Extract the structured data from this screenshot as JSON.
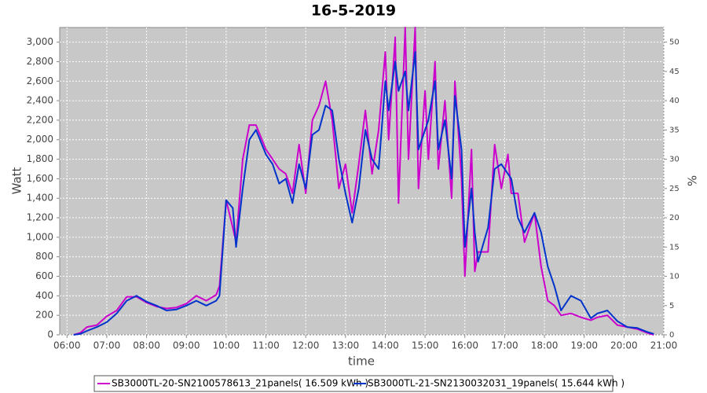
{
  "chart_data": {
    "type": "line",
    "title": "16-5-2019",
    "x_label": "time",
    "y_label": "Watt",
    "y2_label": "%",
    "x": [
      "06:10",
      "06:20",
      "06:30",
      "06:45",
      "07:00",
      "07:15",
      "07:30",
      "07:45",
      "08:00",
      "08:15",
      "08:30",
      "08:45",
      "09:00",
      "09:15",
      "09:30",
      "09:45",
      "09:50",
      "10:00",
      "10:10",
      "10:15",
      "10:25",
      "10:35",
      "10:45",
      "11:00",
      "11:10",
      "11:20",
      "11:30",
      "11:40",
      "11:50",
      "12:00",
      "12:10",
      "12:20",
      "12:30",
      "12:40",
      "12:50",
      "13:00",
      "13:10",
      "13:20",
      "13:30",
      "13:40",
      "13:50",
      "14:00",
      "14:05",
      "14:15",
      "14:20",
      "14:30",
      "14:35",
      "14:45",
      "14:50",
      "15:00",
      "15:05",
      "15:15",
      "15:20",
      "15:30",
      "15:40",
      "15:45",
      "15:55",
      "16:00",
      "16:10",
      "16:15",
      "16:20",
      "16:35",
      "16:45",
      "16:55",
      "17:05",
      "17:10",
      "17:20",
      "17:30",
      "17:45",
      "17:55",
      "18:05",
      "18:15",
      "18:25",
      "18:40",
      "18:55",
      "19:10",
      "19:20",
      "19:35",
      "19:50",
      "20:05",
      "20:20",
      "20:35",
      "20:45"
    ],
    "series": [
      {
        "name": "SB3000TL-20-SN2100578613_21panels( 16.509 kWh )",
        "color": "#cc00cc",
        "values": [
          0,
          20,
          80,
          100,
          190,
          250,
          390,
          390,
          330,
          290,
          270,
          280,
          320,
          400,
          350,
          410,
          500,
          1380,
          1100,
          950,
          1800,
          2150,
          2150,
          1900,
          1800,
          1700,
          1650,
          1450,
          1950,
          1450,
          2200,
          2350,
          2600,
          2200,
          1500,
          1750,
          1250,
          1750,
          2300,
          1650,
          2100,
          2900,
          2000,
          3050,
          1350,
          3150,
          1800,
          3150,
          1500,
          2500,
          1800,
          2800,
          1700,
          2400,
          1400,
          2600,
          1600,
          600,
          1900,
          650,
          850,
          850,
          1950,
          1500,
          1850,
          1450,
          1450,
          950,
          1250,
          700,
          350,
          300,
          200,
          220,
          180,
          150,
          180,
          200,
          100,
          80,
          60,
          20,
          0
        ]
      },
      {
        "name": "SB3000TL-21-SN2130032031_19panels( 15.644 kWh )",
        "color": "#0033cc",
        "values": [
          0,
          10,
          40,
          80,
          130,
          220,
          350,
          400,
          340,
          300,
          250,
          260,
          300,
          350,
          300,
          350,
          400,
          1380,
          1300,
          900,
          1500,
          2000,
          2100,
          1850,
          1750,
          1550,
          1600,
          1350,
          1750,
          1500,
          2050,
          2100,
          2350,
          2300,
          1800,
          1450,
          1150,
          1500,
          2100,
          1800,
          1700,
          2600,
          2300,
          2800,
          2500,
          2700,
          2300,
          2900,
          1900,
          2100,
          2200,
          2600,
          1900,
          2200,
          1600,
          2450,
          1900,
          900,
          1500,
          1050,
          750,
          1100,
          1700,
          1750,
          1650,
          1600,
          1200,
          1050,
          1250,
          1050,
          700,
          500,
          250,
          400,
          350,
          170,
          220,
          250,
          140,
          80,
          70,
          30,
          10
        ]
      }
    ],
    "xlim": [
      "05:49",
      "21:00"
    ],
    "xticks": [
      "06:00",
      "07:00",
      "08:00",
      "09:00",
      "10:00",
      "11:00",
      "12:00",
      "13:00",
      "14:00",
      "15:00",
      "16:00",
      "17:00",
      "18:00",
      "19:00",
      "20:00",
      "21:00"
    ],
    "ylim": [
      0,
      3150
    ],
    "yticks": [
      0,
      200,
      400,
      600,
      800,
      {
        "value": 1000,
        "label": "1,000"
      },
      {
        "value": 1200,
        "label": "1,200"
      },
      {
        "value": 1400,
        "label": "1,400"
      },
      {
        "value": 1600,
        "label": "1,600"
      },
      {
        "value": 1800,
        "label": "1,800"
      },
      {
        "value": 2000,
        "label": "2,000"
      },
      {
        "value": 2200,
        "label": "2,200"
      },
      {
        "value": 2400,
        "label": "2,400"
      },
      {
        "value": 2600,
        "label": "2,600"
      },
      {
        "value": 2800,
        "label": "2,800"
      },
      {
        "value": 3000,
        "label": "3,000"
      }
    ],
    "y2lim": [
      0,
      52.5
    ],
    "y2ticks": [
      0,
      5,
      10,
      15,
      20,
      25,
      30,
      35,
      40,
      45,
      50
    ],
    "grid": true
  }
}
